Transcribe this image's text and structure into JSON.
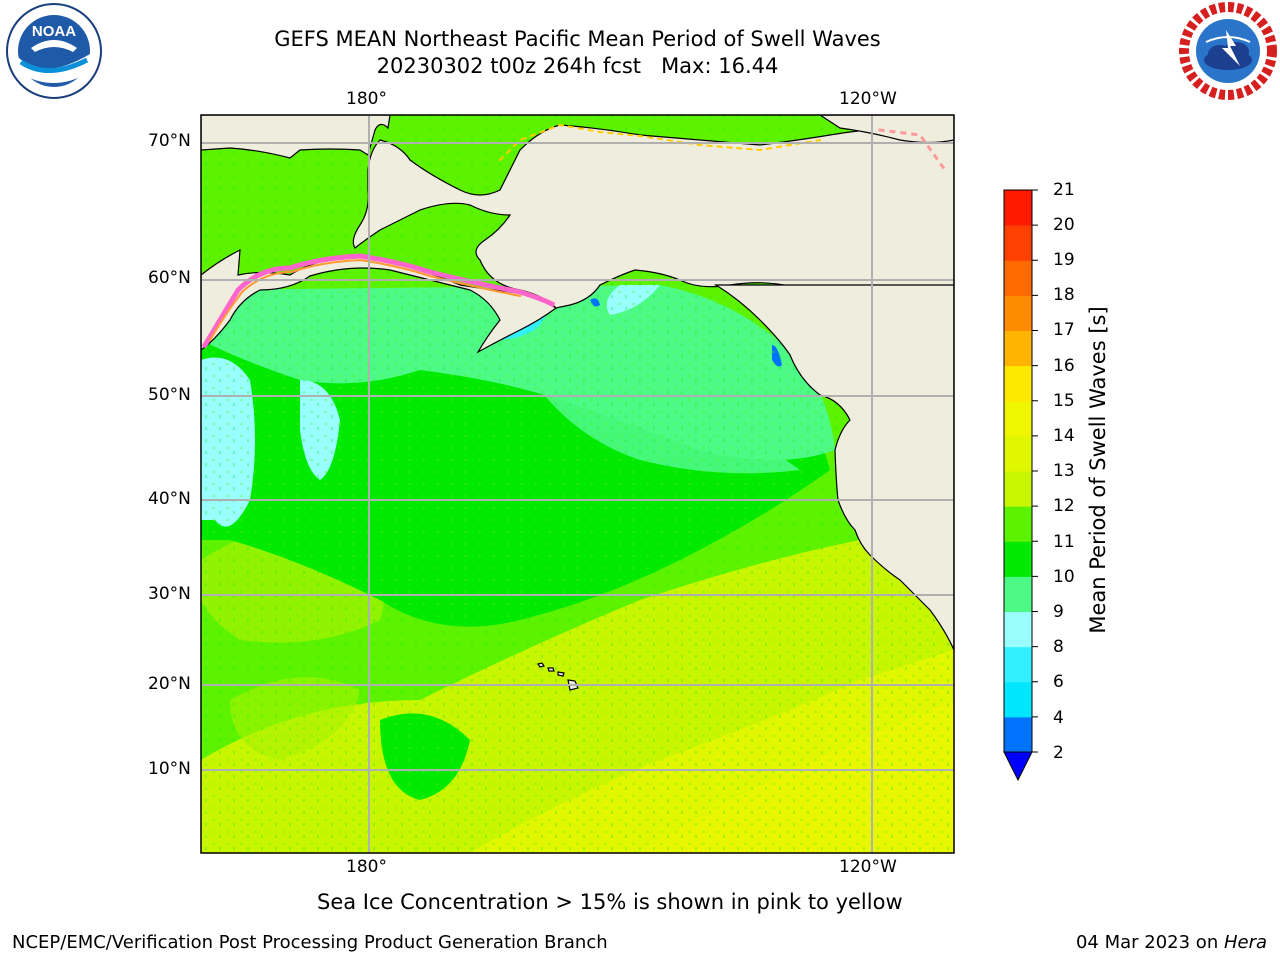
{
  "header": {
    "title_line1": "GEFS MEAN Northeast Pacific Mean Period of Swell Waves",
    "title_line2": "20230302 t00z 264h fcst   Max: 16.44"
  },
  "logos": {
    "noaa_text": "NOAA",
    "noaa_ring_text": "NATIONAL OCEANIC AND ATMOSPHERIC ADMINISTRATION · U.S. DEPARTMENT OF COMMERCE",
    "nws_ring_text": "NATIONAL WEATHER SERVICE"
  },
  "map": {
    "lat_labels": [
      "70°N",
      "60°N",
      "50°N",
      "40°N",
      "30°N",
      "20°N",
      "10°N"
    ],
    "lon_labels_top": [
      "180°",
      "120°W"
    ],
    "lon_labels_bottom": [
      "180°",
      "120°W"
    ],
    "land_color": "#efedde",
    "gridline_color": "#b0b0b0"
  },
  "colorbar": {
    "label": "Mean Period of Swell Waves [s]",
    "ticks": [
      "21",
      "20",
      "19",
      "18",
      "17",
      "16",
      "15",
      "14",
      "13",
      "12",
      "11",
      "10",
      "9",
      "8",
      "6",
      "4",
      "2"
    ],
    "levels_colors": [
      {
        "from": 2,
        "to": 4,
        "color": "#0073ff"
      },
      {
        "from": 4,
        "to": 6,
        "color": "#00e6ff"
      },
      {
        "from": 6,
        "to": 8,
        "color": "#33f0ff"
      },
      {
        "from": 8,
        "to": 9,
        "color": "#99fffe"
      },
      {
        "from": 9,
        "to": 10,
        "color": "#4dfa86"
      },
      {
        "from": 10,
        "to": 11,
        "color": "#00ea00"
      },
      {
        "from": 11,
        "to": 12,
        "color": "#5cf200"
      },
      {
        "from": 12,
        "to": 13,
        "color": "#c8f600"
      },
      {
        "from": 13,
        "to": 14,
        "color": "#e1f700"
      },
      {
        "from": 14,
        "to": 15,
        "color": "#f0f500"
      },
      {
        "from": 15,
        "to": 16,
        "color": "#ffe800"
      },
      {
        "from": 16,
        "to": 17,
        "color": "#ffb400"
      },
      {
        "from": 17,
        "to": 18,
        "color": "#ff8c00"
      },
      {
        "from": 18,
        "to": 19,
        "color": "#ff6a00"
      },
      {
        "from": 19,
        "to": 20,
        "color": "#ff4000"
      },
      {
        "from": 20,
        "to": 21,
        "color": "#ff1a00"
      }
    ],
    "under_color": "#0000ff"
  },
  "note": "Sea Ice Concentration > 15% is shown in pink to yellow",
  "footer": {
    "left": "NCEP/EMC/Verification Post Processing Product Generation Branch",
    "date": "04 Mar 2023 on ",
    "machine": "Hera"
  }
}
